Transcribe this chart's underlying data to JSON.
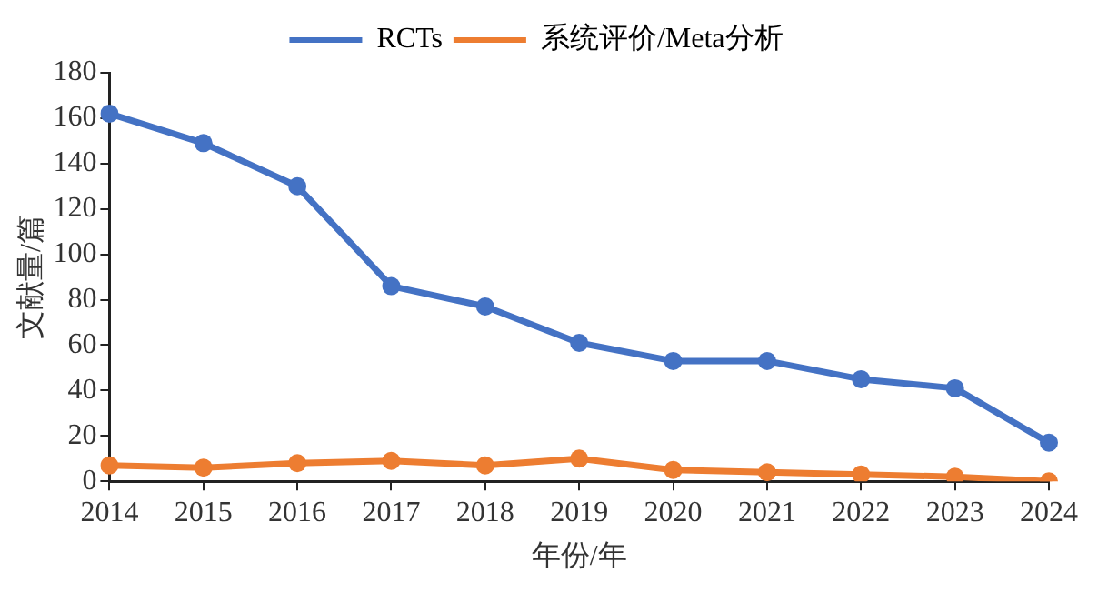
{
  "chart_data": {
    "type": "line",
    "xlabel": "年份/年",
    "ylabel": "文献量/篇",
    "categories": [
      "2014",
      "2015",
      "2016",
      "2017",
      "2018",
      "2019",
      "2020",
      "2021",
      "2022",
      "2023",
      "2024"
    ],
    "series": [
      {
        "name": "RCTs",
        "color": "#4472c4",
        "values": [
          162,
          149,
          130,
          86,
          77,
          61,
          53,
          53,
          45,
          41,
          17
        ]
      },
      {
        "name": "系统评价/Meta分析",
        "color": "#ed7d31",
        "values": [
          7,
          6,
          8,
          9,
          7,
          10,
          5,
          4,
          3,
          2,
          0
        ]
      }
    ],
    "ylim": [
      0,
      180
    ],
    "yticks": [
      0,
      20,
      40,
      60,
      80,
      100,
      120,
      140,
      160,
      180
    ],
    "grid": false,
    "legend": "top",
    "marker": "circle",
    "line_style": "solid"
  }
}
